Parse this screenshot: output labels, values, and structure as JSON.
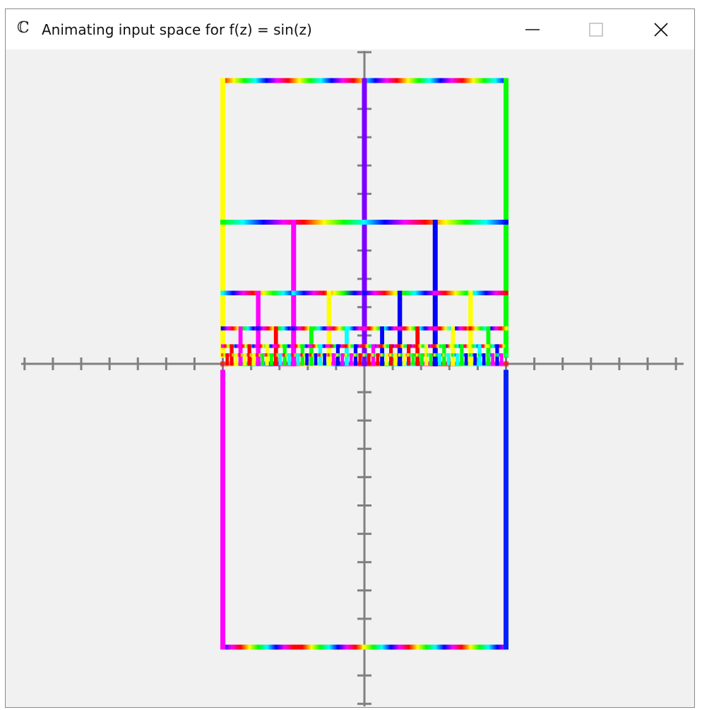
{
  "window": {
    "app_icon": "ℂ",
    "title": "Animating input space for f(z) = sin(z)",
    "controls": {
      "minimize": "minimize-icon",
      "maximize": "maximize-icon",
      "close": "close-icon"
    }
  },
  "plot": {
    "function": "sin(z)",
    "axes": {
      "x_range": [
        -6,
        11
      ],
      "y_range": [
        -12,
        11
      ],
      "tick_step": 1,
      "axis_color": "#808080"
    },
    "domain": {
      "re_range": [
        -5,
        5
      ],
      "im_range": [
        -10,
        10
      ]
    },
    "colors": {
      "hue_cycle": [
        "#ff0000",
        "#ffff00",
        "#00ff00",
        "#00ffff",
        "#0000ff",
        "#ff00ff"
      ],
      "left_edge_upper": "#ffff00",
      "right_edge_upper": "#00ff00",
      "left_edge_lower": "#ff00ff",
      "right_edge_lower": "#0022ff",
      "imag_axis_line": "#7a00ff"
    }
  }
}
